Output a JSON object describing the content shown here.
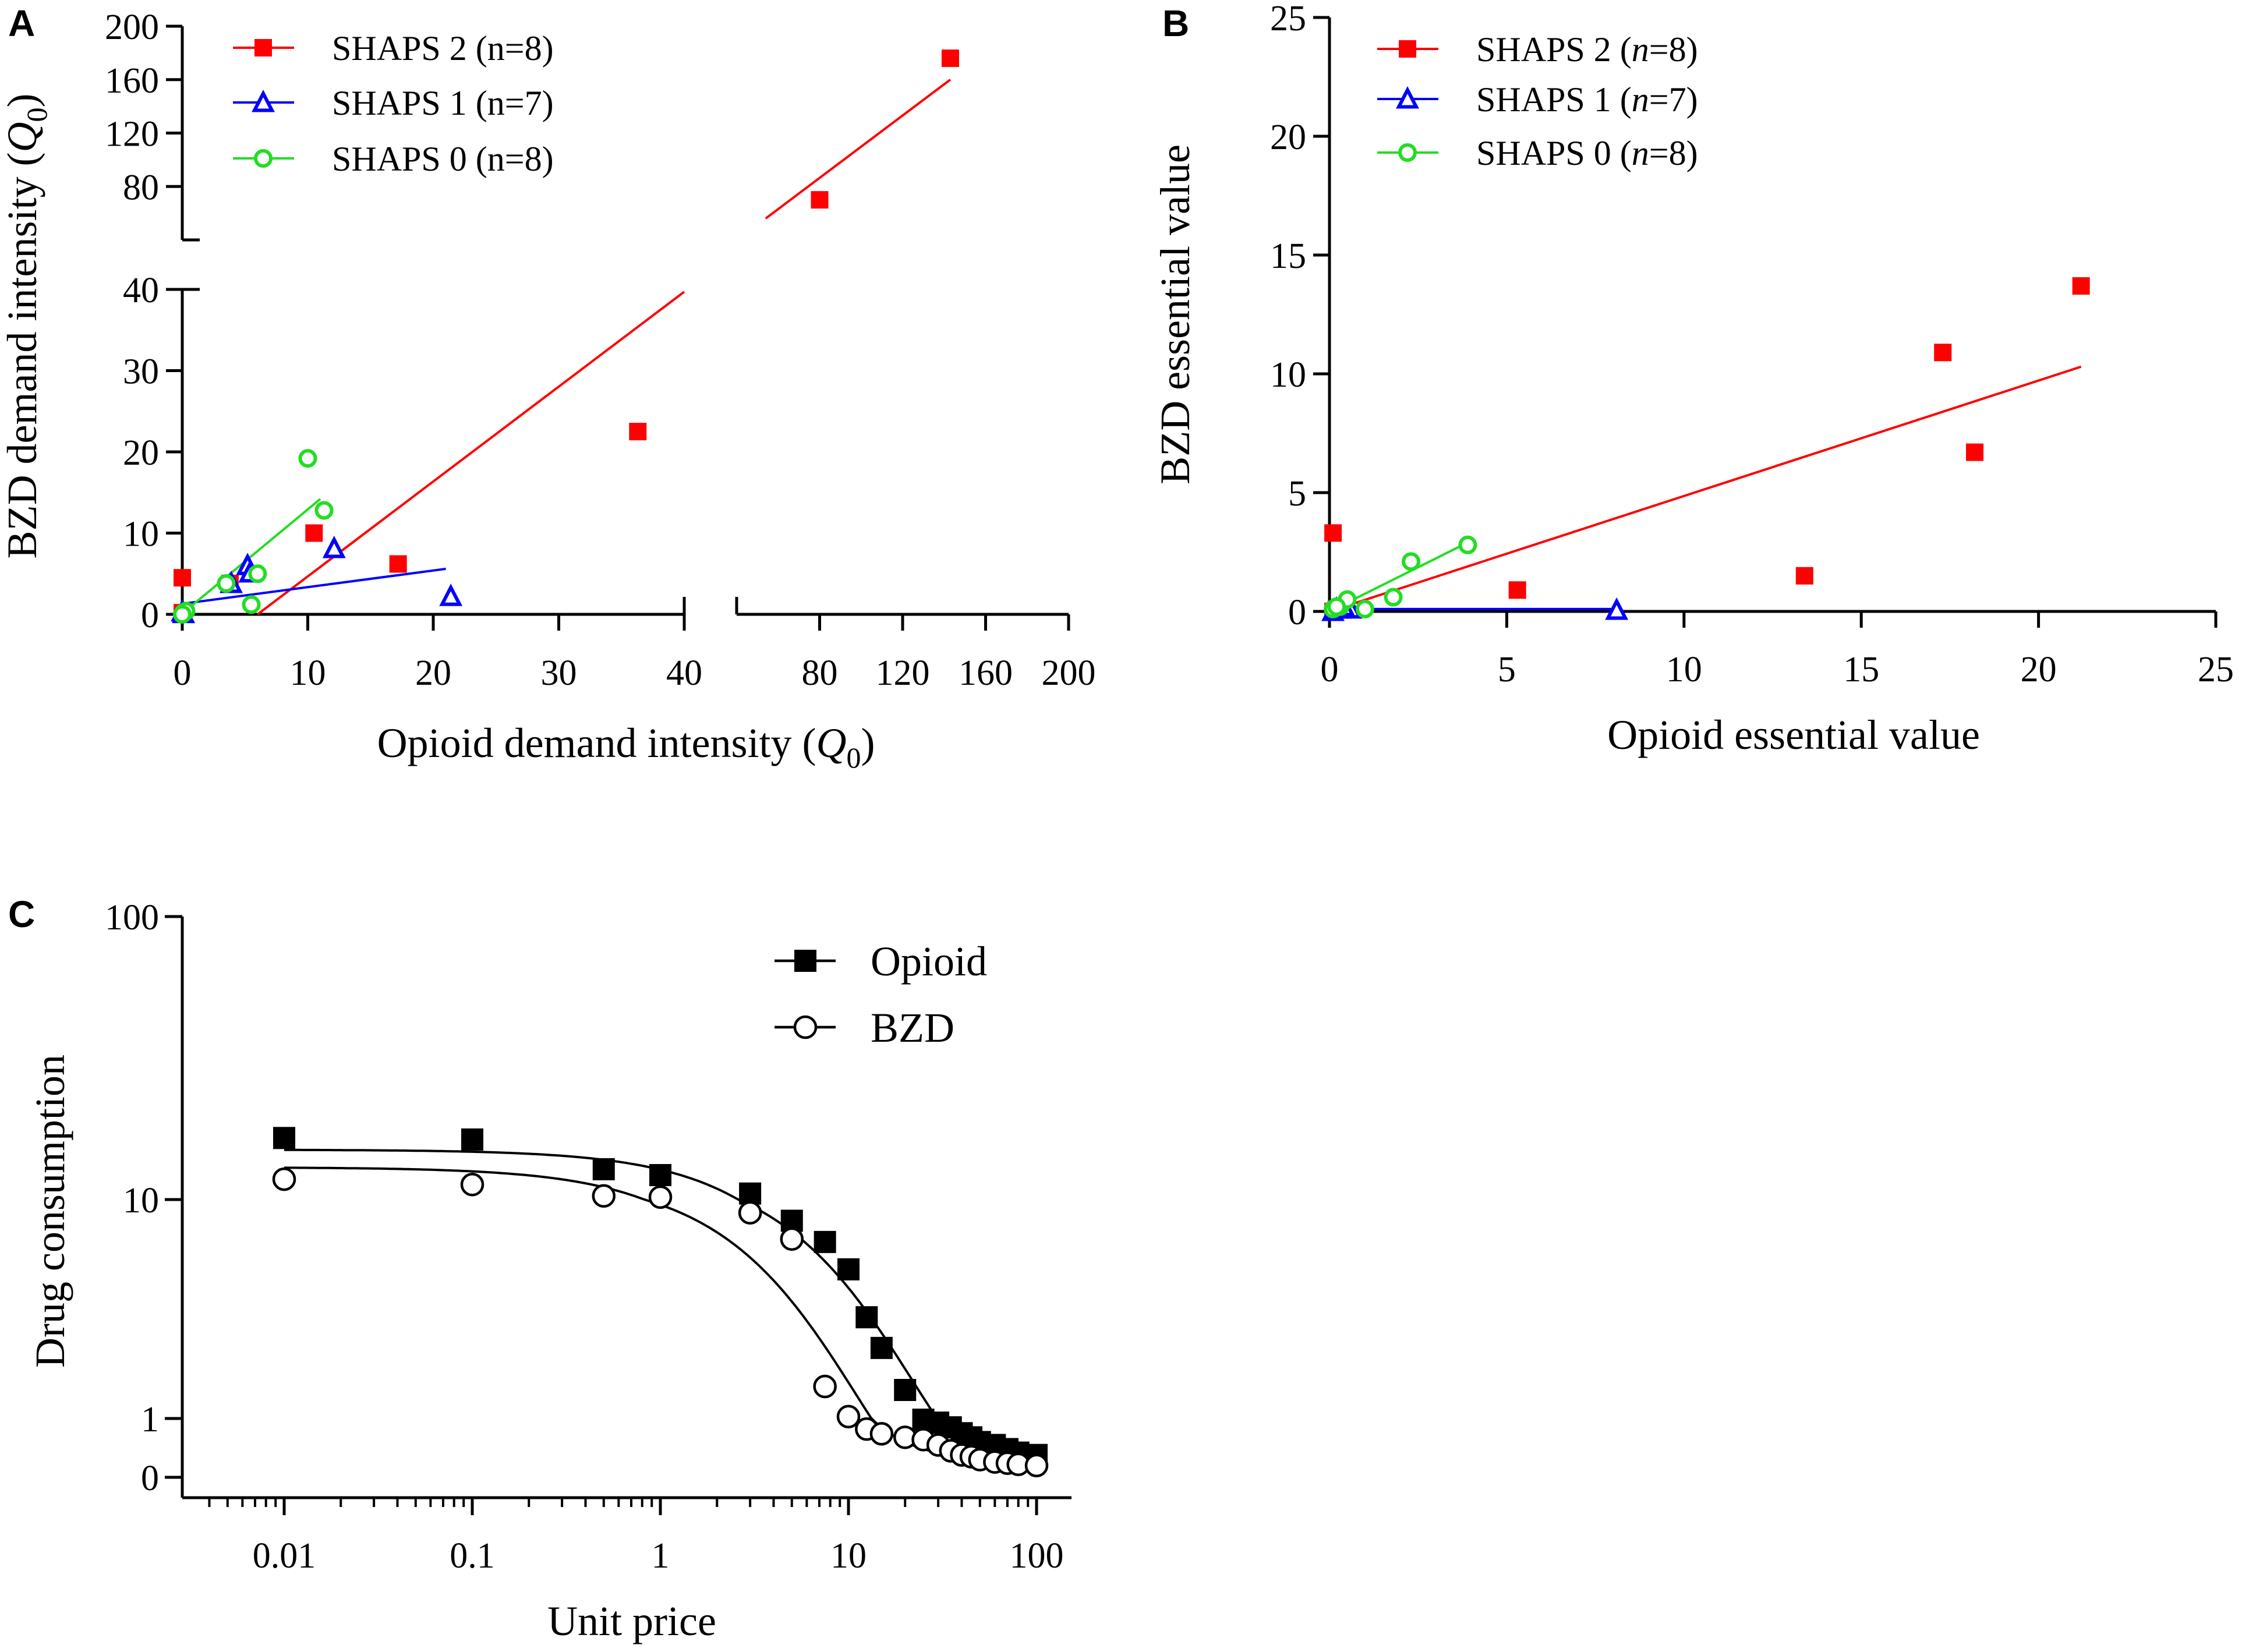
{
  "colors": {
    "shaps2": "#ff0000",
    "shaps1": "#0000ff",
    "shaps0": "#22dd22",
    "black": "#000000"
  },
  "chart_data": [
    {
      "id": "A",
      "panel_label": "A",
      "type": "scatter",
      "xlabel_prefix": "Opioid demand intensity (",
      "xlabel_var": "Q",
      "xlabel_sub": "0",
      "xlabel_suffix": ")",
      "ylabel_prefix": "BZD demand intensity (",
      "ylabel_var": "Q",
      "ylabel_sub": "0",
      "ylabel_suffix": ")",
      "x_axis_segments": [
        [
          0,
          40
        ],
        [
          40,
          200
        ]
      ],
      "y_axis_segments": [
        [
          0,
          40
        ],
        [
          40,
          200
        ]
      ],
      "x_ticks_low": [
        "0",
        "10",
        "20",
        "30",
        "40"
      ],
      "x_ticks_high": [
        "80",
        "120",
        "160",
        "200"
      ],
      "y_ticks_low": [
        "0",
        "10",
        "20",
        "30",
        "40"
      ],
      "y_ticks_high": [
        "80",
        "120",
        "160",
        "200"
      ],
      "legend_position": "top-left",
      "series": [
        {
          "name": "SHAPS 2",
          "n_label": "(n=8)",
          "color_key": "shaps2",
          "marker": "square-filled",
          "points": [
            [
              0,
              4.5
            ],
            [
              3.8,
              3.8
            ],
            [
              10.5,
              10
            ],
            [
              17.2,
              6.2
            ],
            [
              36.3,
              22.5
            ],
            [
              80,
              70
            ],
            [
              143,
              176
            ],
            [
              0,
              0.2
            ]
          ],
          "fit_line": [
            [
              6,
              0
            ],
            [
              143,
              160
            ]
          ]
        },
        {
          "name": "SHAPS 1",
          "n_label": "(n=7)",
          "color_key": "shaps1",
          "marker": "triangle-open",
          "points": [
            [
              0.1,
              0.1
            ],
            [
              0,
              0.3
            ],
            [
              5.2,
              6.0
            ],
            [
              5.4,
              5.1
            ],
            [
              12.1,
              8.1
            ],
            [
              21.4,
              2.2
            ],
            [
              3.9,
              3.8
            ]
          ],
          "fit_line": [
            [
              0,
              1.3
            ],
            [
              21,
              5.6
            ]
          ]
        },
        {
          "name": "SHAPS 0",
          "n_label": "(n=8)",
          "color_key": "shaps0",
          "marker": "circle-open",
          "points": [
            [
              0.1,
              0.2
            ],
            [
              0.3,
              0.4
            ],
            [
              3.5,
              3.8
            ],
            [
              5.5,
              1.2
            ],
            [
              6.0,
              5.0
            ],
            [
              10.0,
              19.2
            ],
            [
              11.3,
              12.8
            ],
            [
              0,
              0
            ]
          ],
          "fit_line": [
            [
              0,
              0.1
            ],
            [
              11,
              14.2
            ]
          ]
        }
      ]
    },
    {
      "id": "B",
      "panel_label": "B",
      "type": "scatter",
      "xlabel": "Opioid essential value",
      "ylabel": "BZD essential value",
      "xlim": [
        0,
        25
      ],
      "ylim": [
        0,
        25
      ],
      "x_ticks": [
        "0",
        "5",
        "10",
        "15",
        "20",
        "25"
      ],
      "y_ticks": [
        "0",
        "5",
        "10",
        "15",
        "20",
        "25"
      ],
      "legend_position": "top-left",
      "series": [
        {
          "name": "SHAPS 2",
          "n_prefix": "(",
          "n_var": "n",
          "n_suffix": "=8)",
          "color_key": "shaps2",
          "marker": "square-filled",
          "points": [
            [
              0.1,
              3.3
            ],
            [
              0.2,
              0.1
            ],
            [
              5.3,
              0.9
            ],
            [
              13.4,
              1.5
            ],
            [
              17.3,
              10.9
            ],
            [
              18.2,
              6.7
            ],
            [
              21.2,
              13.7
            ],
            [
              0.1,
              0
            ]
          ],
          "fit_line": [
            [
              0,
              0
            ],
            [
              21.2,
              10.3
            ]
          ]
        },
        {
          "name": "SHAPS 1",
          "n_prefix": "(",
          "n_var": "n",
          "n_suffix": "=7)",
          "color_key": "shaps1",
          "marker": "triangle-open",
          "points": [
            [
              0.1,
              0
            ],
            [
              0.3,
              0.1
            ],
            [
              0.5,
              0.3
            ],
            [
              0.6,
              0.1
            ],
            [
              8.1,
              0.05
            ],
            [
              0.2,
              0.1
            ],
            [
              0.4,
              0.2
            ]
          ],
          "fit_line": [
            [
              0,
              0.1
            ],
            [
              8.1,
              0.1
            ]
          ]
        },
        {
          "name": "SHAPS 0",
          "n_prefix": "(",
          "n_var": "n",
          "n_suffix": "=8)",
          "color_key": "shaps0",
          "marker": "circle-open",
          "points": [
            [
              0.1,
              0.1
            ],
            [
              0.3,
              0.2
            ],
            [
              0.5,
              0.5
            ],
            [
              1.0,
              0.1
            ],
            [
              1.8,
              0.6
            ],
            [
              2.3,
              2.1
            ],
            [
              3.9,
              2.8
            ],
            [
              0.2,
              0.2
            ]
          ],
          "fit_line": [
            [
              0,
              0
            ],
            [
              3.9,
              2.9
            ]
          ]
        }
      ]
    },
    {
      "id": "C",
      "panel_label": "C",
      "type": "line",
      "xlabel": "Unit price",
      "ylabel": "Drug consumption",
      "x_scale": "log",
      "y_scale": "log",
      "xlim": [
        0.003,
        130
      ],
      "ylim": [
        0,
        100
      ],
      "x_ticks": [
        "0.01",
        "0.1",
        "1",
        "10",
        "100"
      ],
      "y_ticks": [
        "0",
        "1",
        "10",
        "100"
      ],
      "legend_position": "top-right",
      "series": [
        {
          "name": "Opioid",
          "marker": "square-filled",
          "points": [
            [
              0.01,
              16.5
            ],
            [
              0.1,
              16.3
            ],
            [
              0.5,
              12.8
            ],
            [
              1,
              12.2
            ],
            [
              3,
              10.5
            ],
            [
              5,
              8.0
            ],
            [
              7.5,
              6.4
            ],
            [
              10,
              4.8
            ],
            [
              12.5,
              2.9
            ],
            [
              15,
              2.1
            ],
            [
              20,
              1.35
            ],
            [
              25,
              0.98
            ],
            [
              30,
              0.93
            ],
            [
              35,
              0.85
            ],
            [
              40,
              0.75
            ],
            [
              45,
              0.68
            ],
            [
              50,
              0.6
            ],
            [
              60,
              0.55
            ],
            [
              70,
              0.48
            ],
            [
              80,
              0.42
            ],
            [
              100,
              0.38
            ]
          ],
          "fit_curve": "exponential demand (Q0 approx 15)"
        },
        {
          "name": "BZD",
          "marker": "circle-open",
          "points": [
            [
              0.01,
              11.8
            ],
            [
              0.1,
              11.3
            ],
            [
              0.5,
              10.3
            ],
            [
              1,
              10.2
            ],
            [
              3,
              8.7
            ],
            [
              5,
              6.6
            ],
            [
              7.5,
              1.4
            ],
            [
              10,
              1.02
            ],
            [
              12.5,
              0.82
            ],
            [
              15,
              0.74
            ],
            [
              20,
              0.68
            ],
            [
              25,
              0.64
            ],
            [
              30,
              0.55
            ],
            [
              35,
              0.45
            ],
            [
              40,
              0.38
            ],
            [
              45,
              0.35
            ],
            [
              50,
              0.3
            ],
            [
              60,
              0.26
            ],
            [
              70,
              0.24
            ],
            [
              80,
              0.22
            ],
            [
              100,
              0.2
            ]
          ],
          "fit_curve": "exponential demand (Q0 approx 13)"
        }
      ]
    }
  ]
}
